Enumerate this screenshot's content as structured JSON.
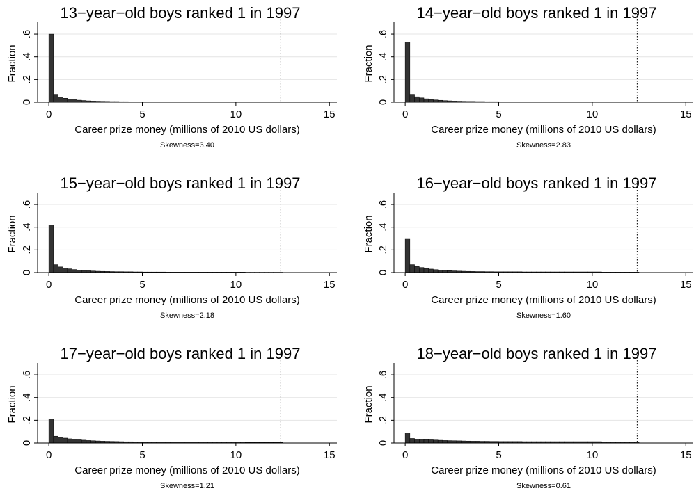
{
  "chart_data": [
    {
      "type": "histogram",
      "title": "13−year−old boys ranked 1 in 1997",
      "xlabel": "Career prize money (millions of 2010 US dollars)",
      "ylabel": "Fraction",
      "note": "Skewness=3.40",
      "bins": [
        0,
        0.25,
        0.5,
        0.75,
        1,
        1.25,
        1.5,
        1.75,
        2,
        2.25,
        2.5,
        2.75,
        3,
        3.25,
        3.5,
        3.75,
        4,
        4.25,
        4.5,
        4.75,
        5,
        5.25,
        5.5,
        5.75,
        6,
        6.25,
        6.5,
        6.75,
        7,
        7.25,
        7.5,
        7.75,
        8,
        8.25,
        8.5,
        8.75,
        9,
        9.25,
        9.5,
        9.75,
        10,
        10.25,
        10.5,
        10.75,
        11,
        11.25,
        11.5,
        11.75,
        12,
        12.25,
        12.5
      ],
      "values": [
        0.6,
        0.07,
        0.045,
        0.035,
        0.028,
        0.022,
        0.018,
        0.015,
        0.012,
        0.01,
        0.009,
        0.008,
        0.007,
        0.006,
        0.006,
        0.005,
        0.005,
        0.004,
        0.004,
        0.004,
        0.003,
        0.003,
        0.003,
        0.003,
        0.003,
        0.002,
        0.002,
        0.002,
        0.002,
        0.002,
        0.002,
        0.002,
        0.002,
        0.002,
        0.002,
        0.002,
        0.002,
        0.002,
        0.002,
        0.002,
        0.002,
        0.002,
        0.001,
        0.001,
        0.001,
        0.001,
        0.001,
        0.001,
        0.001,
        0.001
      ],
      "color": "#333333",
      "vline": 12.4,
      "grid": true,
      "xlim": [
        -0.6,
        15.4
      ],
      "xticks": [
        0,
        5,
        10,
        15
      ],
      "ylim": [
        0,
        0.68
      ],
      "yticks": [
        0,
        {
          "value": 0.2,
          "label": ".2"
        },
        {
          "value": 0.4,
          "label": ".4"
        },
        {
          "value": 0.6,
          "label": ".6"
        }
      ]
    },
    {
      "type": "histogram",
      "title": "14−year−old boys ranked 1 in 1997",
      "xlabel": "Career prize money (millions of 2010 US dollars)",
      "ylabel": "Fraction",
      "note": "Skewness=2.83",
      "bins": [
        0,
        0.25,
        0.5,
        0.75,
        1,
        1.25,
        1.5,
        1.75,
        2,
        2.25,
        2.5,
        2.75,
        3,
        3.25,
        3.5,
        3.75,
        4,
        4.25,
        4.5,
        4.75,
        5,
        5.25,
        5.5,
        5.75,
        6,
        6.25,
        6.5,
        6.75,
        7,
        7.25,
        7.5,
        7.75,
        8,
        8.25,
        8.5,
        8.75,
        9,
        9.25,
        9.5,
        9.75,
        10,
        10.25,
        10.5,
        10.75,
        11,
        11.25,
        11.5,
        11.75,
        12,
        12.25,
        12.5
      ],
      "values": [
        0.53,
        0.07,
        0.048,
        0.038,
        0.03,
        0.024,
        0.02,
        0.017,
        0.014,
        0.012,
        0.01,
        0.009,
        0.008,
        0.007,
        0.007,
        0.006,
        0.006,
        0.005,
        0.005,
        0.005,
        0.004,
        0.004,
        0.004,
        0.004,
        0.004,
        0.003,
        0.003,
        0.003,
        0.003,
        0.003,
        0.003,
        0.003,
        0.003,
        0.003,
        0.003,
        0.003,
        0.003,
        0.003,
        0.003,
        0.003,
        0.003,
        0.003,
        0.002,
        0.002,
        0.002,
        0.002,
        0.002,
        0.002,
        0.002,
        0.002
      ],
      "color": "#333333",
      "vline": 12.4,
      "grid": true,
      "xlim": [
        -0.6,
        15.4
      ],
      "xticks": [
        0,
        5,
        10,
        15
      ],
      "ylim": [
        0,
        0.68
      ],
      "yticks": [
        0,
        {
          "value": 0.2,
          "label": ".2"
        },
        {
          "value": 0.4,
          "label": ".4"
        },
        {
          "value": 0.6,
          "label": ".6"
        }
      ]
    },
    {
      "type": "histogram",
      "title": "15−year−old boys ranked 1 in 1997",
      "xlabel": "Career prize money (millions of 2010 US dollars)",
      "ylabel": "Fraction",
      "note": "Skewness=2.18",
      "bins": [
        0,
        0.25,
        0.5,
        0.75,
        1,
        1.25,
        1.5,
        1.75,
        2,
        2.25,
        2.5,
        2.75,
        3,
        3.25,
        3.5,
        3.75,
        4,
        4.25,
        4.5,
        4.75,
        5,
        5.25,
        5.5,
        5.75,
        6,
        6.25,
        6.5,
        6.75,
        7,
        7.25,
        7.5,
        7.75,
        8,
        8.25,
        8.5,
        8.75,
        9,
        9.25,
        9.5,
        9.75,
        10,
        10.25,
        10.5,
        10.75,
        11,
        11.25,
        11.5,
        11.75,
        12,
        12.25,
        12.5
      ],
      "values": [
        0.42,
        0.07,
        0.05,
        0.04,
        0.033,
        0.027,
        0.022,
        0.019,
        0.016,
        0.014,
        0.012,
        0.011,
        0.01,
        0.009,
        0.008,
        0.008,
        0.007,
        0.007,
        0.006,
        0.006,
        0.005,
        0.005,
        0.005,
        0.005,
        0.005,
        0.004,
        0.004,
        0.004,
        0.004,
        0.004,
        0.004,
        0.004,
        0.004,
        0.004,
        0.004,
        0.004,
        0.004,
        0.004,
        0.004,
        0.004,
        0.004,
        0.004,
        0.003,
        0.003,
        0.003,
        0.003,
        0.003,
        0.003,
        0.003,
        0.003
      ],
      "color": "#333333",
      "vline": 12.4,
      "grid": true,
      "xlim": [
        -0.6,
        15.4
      ],
      "xticks": [
        0,
        5,
        10,
        15
      ],
      "ylim": [
        0,
        0.68
      ],
      "yticks": [
        0,
        {
          "value": 0.2,
          "label": ".2"
        },
        {
          "value": 0.4,
          "label": ".4"
        },
        {
          "value": 0.6,
          "label": ".6"
        }
      ]
    },
    {
      "type": "histogram",
      "title": "16−year−old boys ranked 1 in 1997",
      "xlabel": "Career prize money (millions of 2010 US dollars)",
      "ylabel": "Fraction",
      "note": "Skewness=1.60",
      "bins": [
        0,
        0.25,
        0.5,
        0.75,
        1,
        1.25,
        1.5,
        1.75,
        2,
        2.25,
        2.5,
        2.75,
        3,
        3.25,
        3.5,
        3.75,
        4,
        4.25,
        4.5,
        4.75,
        5,
        5.25,
        5.5,
        5.75,
        6,
        6.25,
        6.5,
        6.75,
        7,
        7.25,
        7.5,
        7.75,
        8,
        8.25,
        8.5,
        8.75,
        9,
        9.25,
        9.5,
        9.75,
        10,
        10.25,
        10.5,
        10.75,
        11,
        11.25,
        11.5,
        11.75,
        12,
        12.25,
        12.5
      ],
      "values": [
        0.3,
        0.07,
        0.055,
        0.045,
        0.037,
        0.031,
        0.026,
        0.022,
        0.019,
        0.017,
        0.015,
        0.013,
        0.012,
        0.011,
        0.01,
        0.009,
        0.009,
        0.008,
        0.008,
        0.007,
        0.007,
        0.007,
        0.007,
        0.007,
        0.007,
        0.006,
        0.006,
        0.006,
        0.006,
        0.006,
        0.006,
        0.006,
        0.006,
        0.006,
        0.006,
        0.006,
        0.006,
        0.006,
        0.006,
        0.006,
        0.006,
        0.006,
        0.004,
        0.004,
        0.004,
        0.004,
        0.004,
        0.004,
        0.004,
        0.004
      ],
      "color": "#333333",
      "vline": 12.4,
      "grid": true,
      "xlim": [
        -0.6,
        15.4
      ],
      "xticks": [
        0,
        5,
        10,
        15
      ],
      "ylim": [
        0,
        0.68
      ],
      "yticks": [
        0,
        {
          "value": 0.2,
          "label": ".2"
        },
        {
          "value": 0.4,
          "label": ".4"
        },
        {
          "value": 0.6,
          "label": ".6"
        }
      ]
    },
    {
      "type": "histogram",
      "title": "17−year−old boys ranked 1 in 1997",
      "xlabel": "Career prize money (millions of 2010 US dollars)",
      "ylabel": "Fraction",
      "note": "Skewness=1.21",
      "bins": [
        0,
        0.25,
        0.5,
        0.75,
        1,
        1.25,
        1.5,
        1.75,
        2,
        2.25,
        2.5,
        2.75,
        3,
        3.25,
        3.5,
        3.75,
        4,
        4.25,
        4.5,
        4.75,
        5,
        5.25,
        5.5,
        5.75,
        6,
        6.25,
        6.5,
        6.75,
        7,
        7.25,
        7.5,
        7.75,
        8,
        8.25,
        8.5,
        8.75,
        9,
        9.25,
        9.5,
        9.75,
        10,
        10.25,
        10.5,
        10.75,
        11,
        11.25,
        11.5,
        11.75,
        12,
        12.25,
        12.5
      ],
      "values": [
        0.21,
        0.06,
        0.05,
        0.043,
        0.037,
        0.032,
        0.028,
        0.025,
        0.022,
        0.02,
        0.018,
        0.016,
        0.015,
        0.014,
        0.013,
        0.012,
        0.011,
        0.011,
        0.01,
        0.01,
        0.009,
        0.009,
        0.009,
        0.009,
        0.009,
        0.008,
        0.008,
        0.008,
        0.008,
        0.008,
        0.008,
        0.008,
        0.008,
        0.008,
        0.008,
        0.008,
        0.008,
        0.008,
        0.008,
        0.008,
        0.008,
        0.008,
        0.005,
        0.005,
        0.005,
        0.005,
        0.005,
        0.005,
        0.005,
        0.005
      ],
      "color": "#333333",
      "vline": 12.4,
      "grid": true,
      "xlim": [
        -0.6,
        15.4
      ],
      "xticks": [
        0,
        5,
        10,
        15
      ],
      "ylim": [
        0,
        0.68
      ],
      "yticks": [
        0,
        {
          "value": 0.2,
          "label": ".2"
        },
        {
          "value": 0.4,
          "label": ".4"
        },
        {
          "value": 0.6,
          "label": ".6"
        }
      ]
    },
    {
      "type": "histogram",
      "title": "18−year−old boys ranked 1 in 1997",
      "xlabel": "Career prize money (millions of 2010 US dollars)",
      "ylabel": "Fraction",
      "note": "Skewness=0.61",
      "bins": [
        0,
        0.25,
        0.5,
        0.75,
        1,
        1.25,
        1.5,
        1.75,
        2,
        2.25,
        2.5,
        2.75,
        3,
        3.25,
        3.5,
        3.75,
        4,
        4.25,
        4.5,
        4.75,
        5,
        5.25,
        5.5,
        5.75,
        6,
        6.25,
        6.5,
        6.75,
        7,
        7.25,
        7.5,
        7.75,
        8,
        8.25,
        8.5,
        8.75,
        9,
        9.25,
        9.5,
        9.75,
        10,
        10.25,
        10.5,
        10.75,
        11,
        11.25,
        11.5,
        11.75,
        12,
        12.25,
        12.5
      ],
      "values": [
        0.09,
        0.04,
        0.035,
        0.032,
        0.03,
        0.028,
        0.026,
        0.024,
        0.022,
        0.021,
        0.02,
        0.019,
        0.018,
        0.017,
        0.016,
        0.016,
        0.015,
        0.015,
        0.014,
        0.014,
        0.013,
        0.013,
        0.013,
        0.013,
        0.013,
        0.012,
        0.012,
        0.012,
        0.012,
        0.012,
        0.012,
        0.012,
        0.012,
        0.012,
        0.012,
        0.012,
        0.012,
        0.012,
        0.012,
        0.012,
        0.012,
        0.012,
        0.008,
        0.008,
        0.008,
        0.008,
        0.008,
        0.008,
        0.008,
        0.008
      ],
      "color": "#333333",
      "vline": 12.4,
      "grid": true,
      "xlim": [
        -0.6,
        15.4
      ],
      "xticks": [
        0,
        5,
        10,
        15
      ],
      "ylim": [
        0,
        0.68
      ],
      "yticks": [
        0,
        {
          "value": 0.2,
          "label": ".2"
        },
        {
          "value": 0.4,
          "label": ".4"
        },
        {
          "value": 0.6,
          "label": ".6"
        }
      ]
    }
  ]
}
